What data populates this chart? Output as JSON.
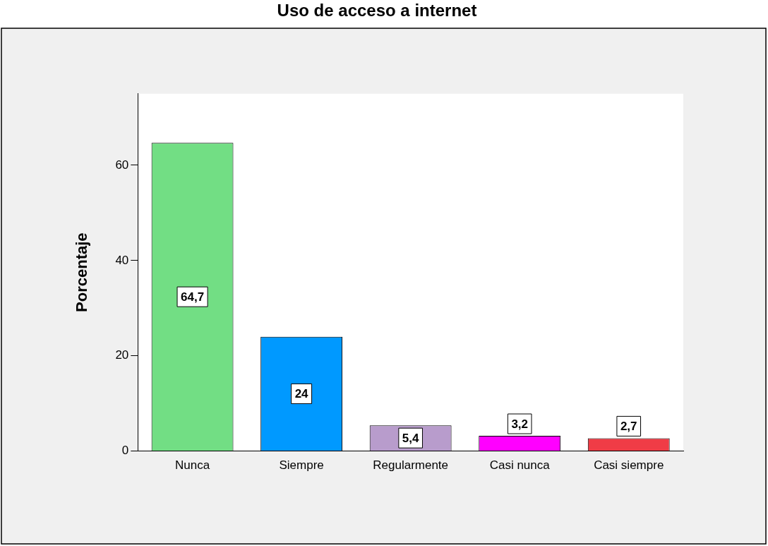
{
  "chart_data": {
    "type": "bar",
    "title": "Uso de acceso a internet",
    "ylabel": "Porcentaje",
    "categories": [
      "Nunca",
      "Siempre",
      "Regularmente",
      "Casi nunca",
      "Casi siempre"
    ],
    "values": [
      64.7,
      24,
      5.4,
      3.2,
      2.7
    ],
    "colors": [
      "#72de84",
      "#0099ff",
      "#b89ccc",
      "#ff00ff",
      "#f03c46"
    ],
    "value_labels": [
      "64,7",
      "24",
      "5,4",
      "3,2",
      "2,7"
    ],
    "ylim": [
      0,
      75
    ],
    "yticks": [
      0,
      20,
      40,
      60
    ],
    "grid": false,
    "legend": false
  }
}
